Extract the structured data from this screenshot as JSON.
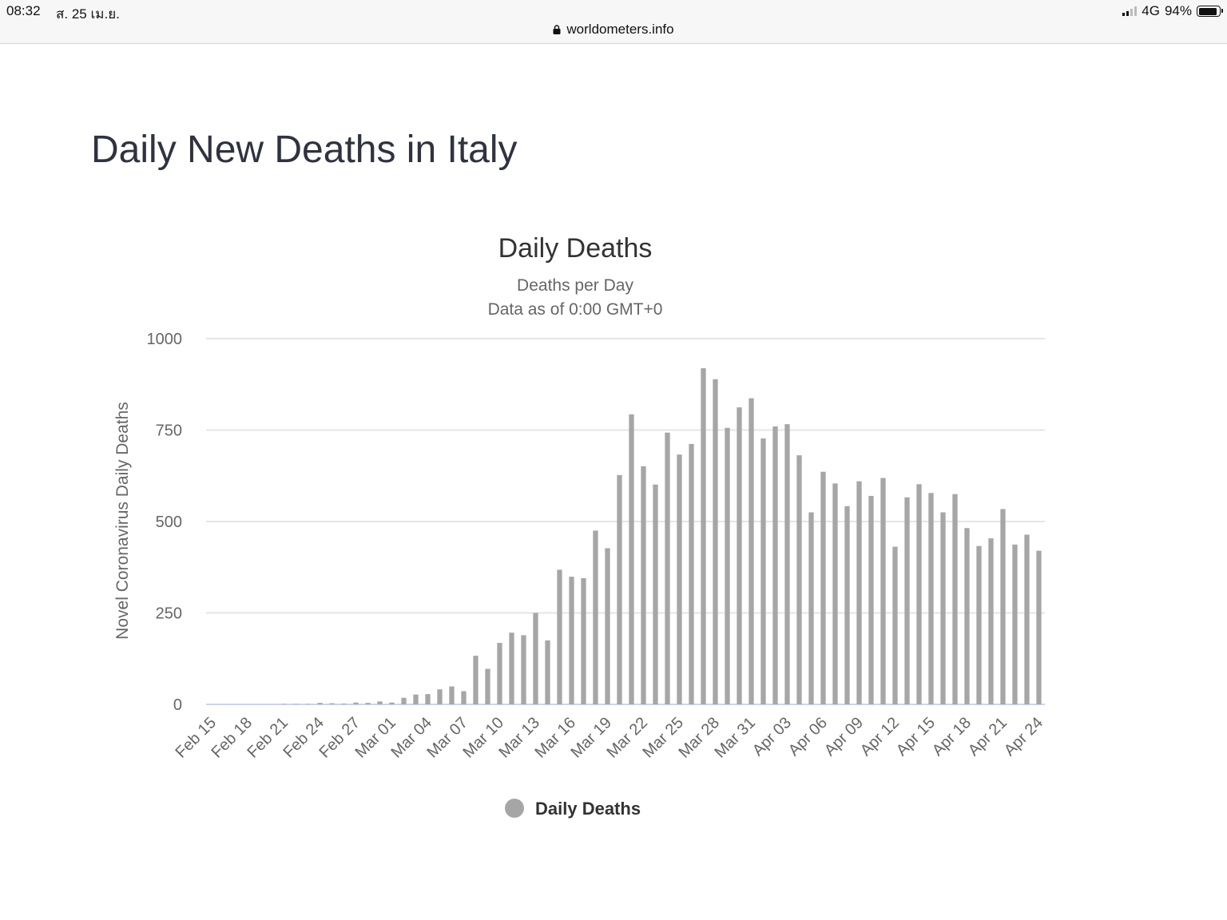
{
  "status_bar": {
    "time": "08:32",
    "date": "ส. 25 เม.ย.",
    "url": "worldometers.info",
    "network": "4G",
    "battery": "94%",
    "battery_level": 0.94
  },
  "page": {
    "title": "Daily New Deaths in Italy"
  },
  "colors": {
    "bar": "#a6a6a6",
    "grid": "#e6e6e6",
    "baseline": "#ccd6eb",
    "axis_text": "#666666",
    "title_text": "#333333"
  },
  "chart_data": {
    "type": "bar",
    "title": "Daily Deaths",
    "subtitle_lines": [
      "Deaths per Day",
      "Data as of 0:00 GMT+0"
    ],
    "ylabel": "Novel Coronavirus Daily Deaths",
    "xlabel": "",
    "ylim": [
      0,
      1000
    ],
    "yticks": [
      0,
      250,
      500,
      750,
      1000
    ],
    "grid": true,
    "legend_position": "bottom-center",
    "x_tick_labels": [
      "Feb 15",
      "Feb 18",
      "Feb 21",
      "Feb 24",
      "Feb 27",
      "Mar 01",
      "Mar 04",
      "Mar 07",
      "Mar 10",
      "Mar 13",
      "Mar 16",
      "Mar 19",
      "Mar 22",
      "Mar 25",
      "Mar 28",
      "Mar 31",
      "Apr 03",
      "Apr 06",
      "Apr 09",
      "Apr 12",
      "Apr 15",
      "Apr 18",
      "Apr 21",
      "Apr 24"
    ],
    "categories": [
      "Feb 15",
      "Feb 16",
      "Feb 17",
      "Feb 18",
      "Feb 19",
      "Feb 20",
      "Feb 21",
      "Feb 22",
      "Feb 23",
      "Feb 24",
      "Feb 25",
      "Feb 26",
      "Feb 27",
      "Feb 28",
      "Feb 29",
      "Mar 01",
      "Mar 02",
      "Mar 03",
      "Mar 04",
      "Mar 05",
      "Mar 06",
      "Mar 07",
      "Mar 08",
      "Mar 09",
      "Mar 10",
      "Mar 11",
      "Mar 12",
      "Mar 13",
      "Mar 14",
      "Mar 15",
      "Mar 16",
      "Mar 17",
      "Mar 18",
      "Mar 19",
      "Mar 20",
      "Mar 21",
      "Mar 22",
      "Mar 23",
      "Mar 24",
      "Mar 25",
      "Mar 26",
      "Mar 27",
      "Mar 28",
      "Mar 29",
      "Mar 30",
      "Mar 31",
      "Apr 01",
      "Apr 02",
      "Apr 03",
      "Apr 04",
      "Apr 05",
      "Apr 06",
      "Apr 07",
      "Apr 08",
      "Apr 09",
      "Apr 10",
      "Apr 11",
      "Apr 12",
      "Apr 13",
      "Apr 14",
      "Apr 15",
      "Apr 16",
      "Apr 17",
      "Apr 18",
      "Apr 19",
      "Apr 20",
      "Apr 21",
      "Apr 22",
      "Apr 23",
      "Apr 24"
    ],
    "series": [
      {
        "name": "Daily Deaths",
        "values": [
          0,
          0,
          0,
          0,
          0,
          0,
          1,
          1,
          1,
          4,
          3,
          2,
          5,
          4,
          8,
          5,
          18,
          27,
          28,
          41,
          49,
          36,
          133,
          97,
          168,
          196,
          189,
          250,
          175,
          368,
          349,
          345,
          475,
          427,
          627,
          793,
          651,
          601,
          743,
          683,
          712,
          919,
          889,
          756,
          812,
          837,
          727,
          760,
          766,
          681,
          525,
          636,
          604,
          542,
          610,
          570,
          619,
          431,
          566,
          602,
          578,
          525,
          575,
          482,
          433,
          454,
          534,
          437,
          464,
          420
        ]
      }
    ]
  }
}
